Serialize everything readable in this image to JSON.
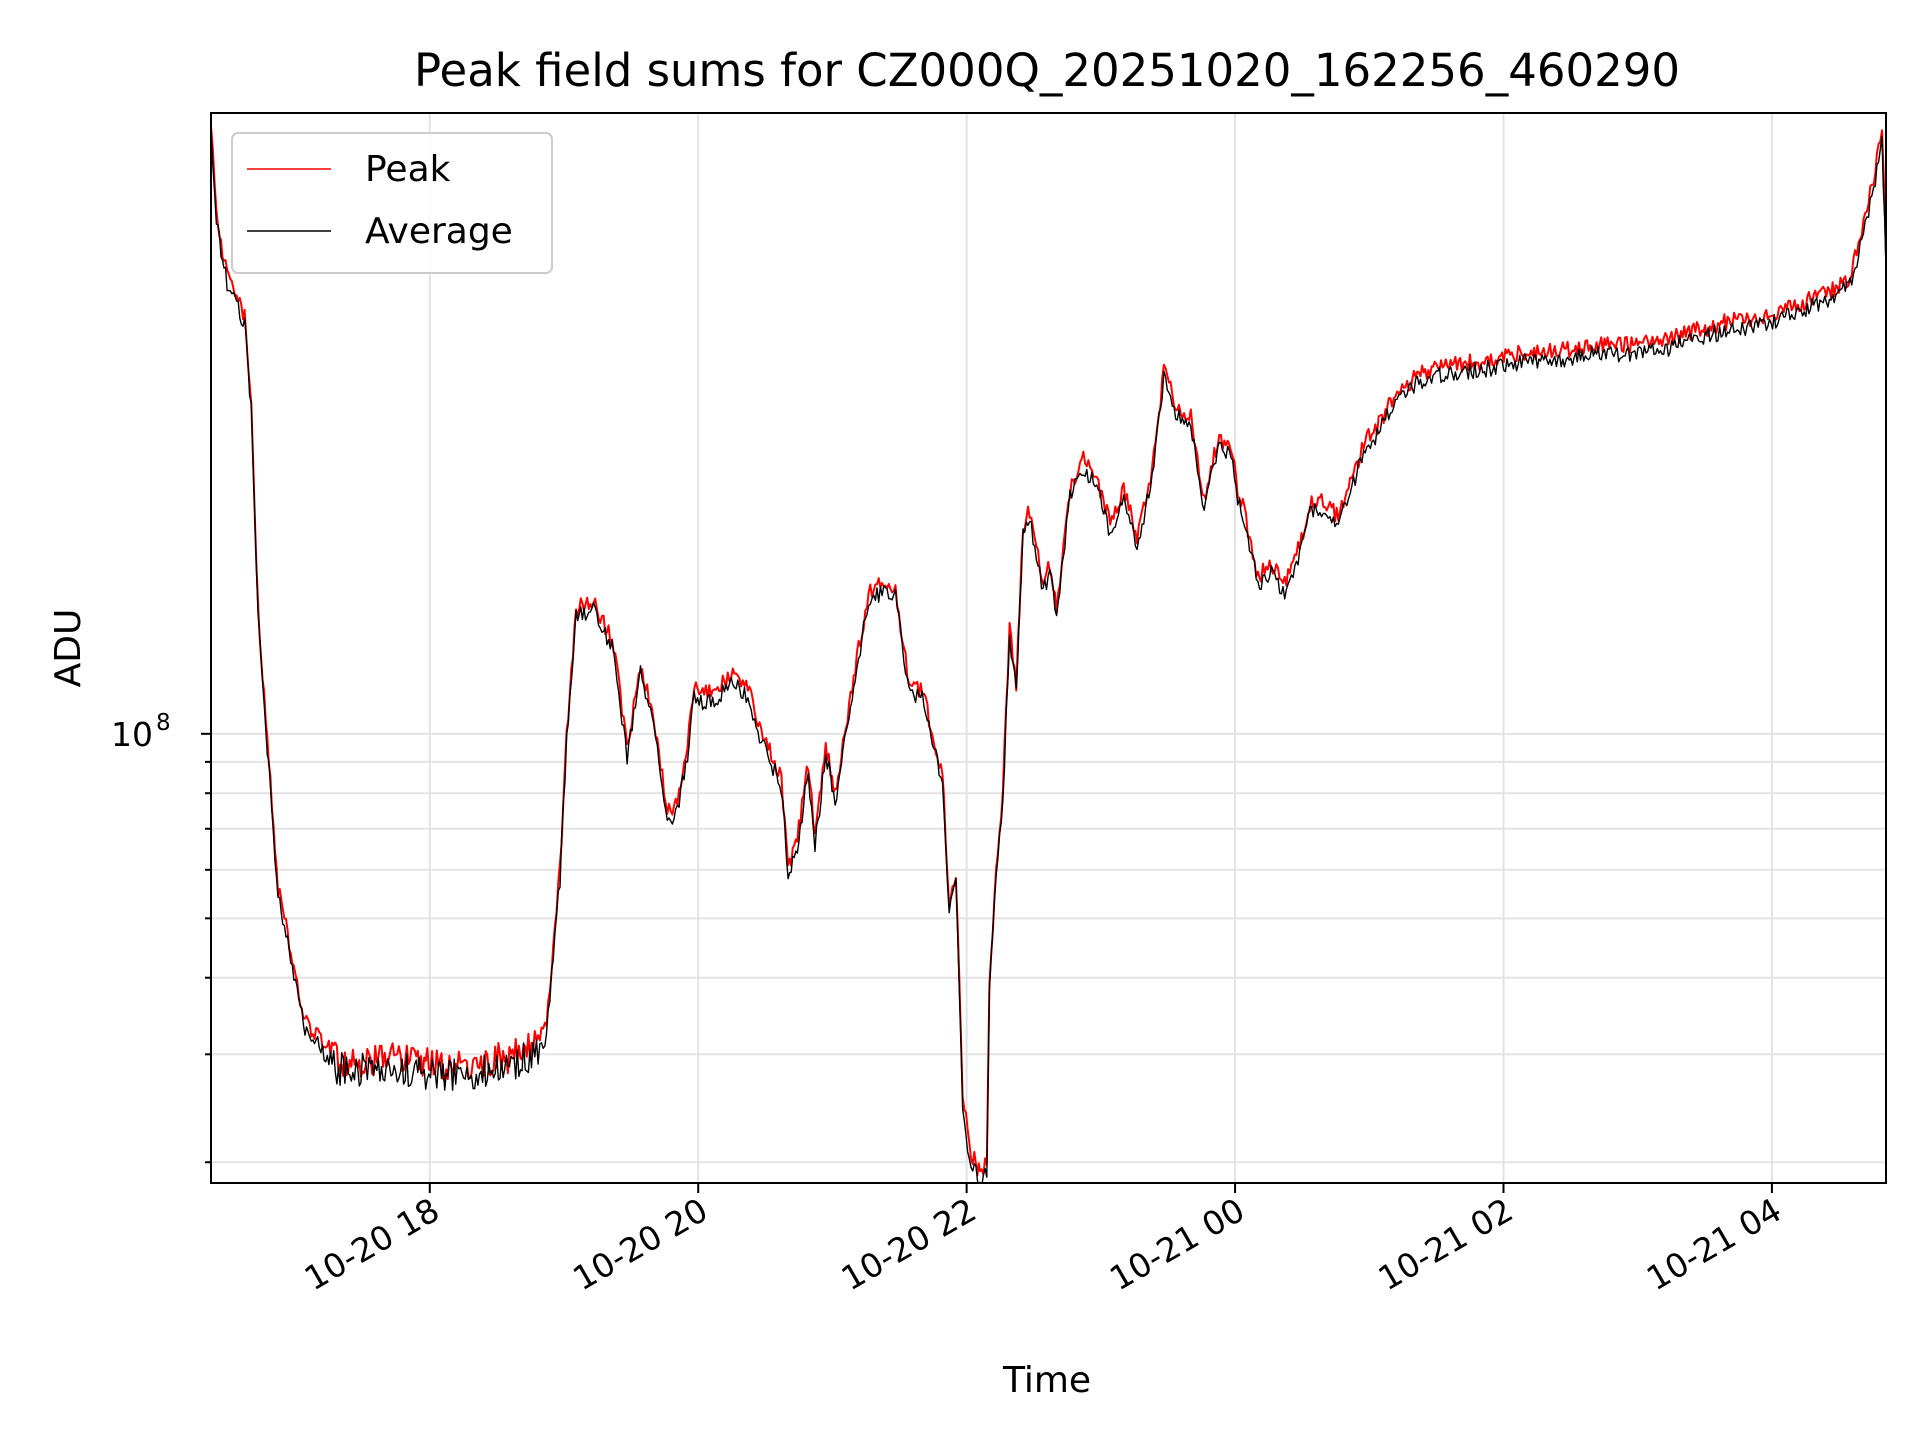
{
  "chart_data": {
    "type": "line",
    "title": "Peak field sums for CZ000Q_20251020_162256_460290",
    "xlabel": "Time",
    "ylabel": "ADU",
    "yscale": "log",
    "grid": true,
    "legend_position": "top-left",
    "x_units": "hours since 2025-10-20 16:22",
    "xlim": [
      0.0,
      12.48
    ],
    "ylim": [
      18500000,
      1030000000
    ],
    "x_ticks": [
      {
        "x": 1.63,
        "label": "10-20 18"
      },
      {
        "x": 3.63,
        "label": "10-20 20"
      },
      {
        "x": 5.63,
        "label": "10-20 22"
      },
      {
        "x": 7.63,
        "label": "10-21 00"
      },
      {
        "x": 9.63,
        "label": "10-21 02"
      },
      {
        "x": 11.63,
        "label": "10-21 04"
      }
    ],
    "y_major_ticks": [
      {
        "value": 100000000,
        "base": "10",
        "exponent": "8"
      }
    ],
    "y_minor_ticks": [
      20000000,
      30000000,
      40000000,
      50000000,
      60000000,
      70000000,
      80000000,
      90000000
    ],
    "colors": {
      "peak": "#ff0000",
      "average": "#000000",
      "grid": "#e3e3e3"
    },
    "series": [
      {
        "name": "Peak",
        "color": "#ff0000",
        "x": [
          0.0,
          0.04,
          0.12,
          0.25,
          0.3,
          0.35,
          0.5,
          0.7,
          0.95,
          1.2,
          1.4,
          1.6,
          1.8,
          2.0,
          2.2,
          2.4,
          2.5,
          2.6,
          2.65,
          2.72,
          2.85,
          3.0,
          3.1,
          3.2,
          3.3,
          3.4,
          3.45,
          3.55,
          3.6,
          3.65,
          3.75,
          3.9,
          4.0,
          4.1,
          4.15,
          4.25,
          4.3,
          4.38,
          4.45,
          4.5,
          4.58,
          4.65,
          4.72,
          4.8,
          4.9,
          5.0,
          5.1,
          5.2,
          5.3,
          5.4,
          5.45,
          5.5,
          5.55,
          5.6,
          5.65,
          5.7,
          5.73,
          5.78,
          5.8,
          5.85,
          5.9,
          5.95,
          6.0,
          6.05,
          6.1,
          6.2,
          6.25,
          6.3,
          6.4,
          6.5,
          6.6,
          6.7,
          6.8,
          6.9,
          7.0,
          7.1,
          7.2,
          7.3,
          7.4,
          7.5,
          7.6,
          7.65,
          7.7,
          7.8,
          7.9,
          8.0,
          8.1,
          8.2,
          8.3,
          8.4,
          8.5,
          8.6,
          8.7,
          8.8,
          8.9,
          9.0,
          9.2,
          9.5,
          9.8,
          10.0,
          10.3,
          10.5,
          10.8,
          11.0,
          11.3,
          11.6,
          11.8,
          12.0,
          12.2,
          12.3,
          12.4,
          12.45,
          12.48
        ],
        "values": [
          1000000000,
          700000000,
          560000000,
          480000000,
          350000000,
          160000000,
          56000000,
          34000000,
          29500000,
          29300000,
          29500000,
          28900000,
          28600000,
          29000000,
          29600000,
          31000000,
          33000000,
          60000000,
          100000000,
          160000000,
          165000000,
          140000000,
          95000000,
          130000000,
          105000000,
          75000000,
          74000000,
          95000000,
          120000000,
          117000000,
          118000000,
          125000000,
          119000000,
          100000000,
          95000000,
          85000000,
          60000000,
          70000000,
          90000000,
          68000000,
          96000000,
          80000000,
          100000000,
          128000000,
          170000000,
          175000000,
          172000000,
          120000000,
          118000000,
          95000000,
          86000000,
          53000000,
          60000000,
          26000000,
          21000000,
          20000000,
          19000000,
          20000000,
          40000000,
          60000000,
          80000000,
          150000000,
          120000000,
          220000000,
          230000000,
          175000000,
          190000000,
          160000000,
          250000000,
          280000000,
          260000000,
          220000000,
          250000000,
          210000000,
          260000000,
          390000000,
          340000000,
          330000000,
          240000000,
          300000000,
          295000000,
          250000000,
          230000000,
          180000000,
          190000000,
          175000000,
          200000000,
          240000000,
          240000000,
          225000000,
          260000000,
          300000000,
          320000000,
          350000000,
          370000000,
          385000000,
          400000000,
          405000000,
          420000000,
          420000000,
          430000000,
          430000000,
          435000000,
          450000000,
          470000000,
          480000000,
          500000000,
          520000000,
          550000000,
          650000000,
          830000000,
          970000000,
          600000000
        ]
      },
      {
        "name": "Average",
        "color": "#000000",
        "x": [
          0.0,
          0.04,
          0.12,
          0.25,
          0.3,
          0.35,
          0.5,
          0.7,
          0.95,
          1.2,
          1.4,
          1.6,
          1.8,
          2.0,
          2.2,
          2.4,
          2.5,
          2.6,
          2.65,
          2.72,
          2.85,
          3.0,
          3.1,
          3.2,
          3.3,
          3.4,
          3.45,
          3.55,
          3.6,
          3.65,
          3.75,
          3.9,
          4.0,
          4.1,
          4.15,
          4.25,
          4.3,
          4.38,
          4.45,
          4.5,
          4.58,
          4.65,
          4.72,
          4.8,
          4.9,
          5.0,
          5.1,
          5.2,
          5.3,
          5.4,
          5.45,
          5.5,
          5.55,
          5.6,
          5.65,
          5.7,
          5.73,
          5.78,
          5.8,
          5.85,
          5.9,
          5.95,
          6.0,
          6.05,
          6.1,
          6.2,
          6.25,
          6.3,
          6.4,
          6.5,
          6.6,
          6.7,
          6.8,
          6.9,
          7.0,
          7.1,
          7.2,
          7.3,
          7.4,
          7.5,
          7.6,
          7.65,
          7.7,
          7.8,
          7.9,
          8.0,
          8.1,
          8.2,
          8.3,
          8.4,
          8.5,
          8.6,
          8.7,
          8.8,
          8.9,
          9.0,
          9.2,
          9.5,
          9.8,
          10.0,
          10.3,
          10.5,
          10.8,
          11.0,
          11.3,
          11.6,
          11.8,
          12.0,
          12.2,
          12.3,
          12.4,
          12.45,
          12.48
        ],
        "values": [
          990000000,
          680000000,
          545000000,
          465000000,
          340000000,
          155000000,
          54000000,
          33000000,
          28400000,
          28200000,
          28400000,
          27900000,
          27600000,
          28000000,
          28600000,
          30000000,
          32000000,
          58000000,
          97000000,
          155000000,
          160000000,
          136000000,
          92000000,
          126000000,
          102000000,
          72000000,
          71000000,
          92000000,
          116000000,
          113000000,
          114000000,
          121000000,
          115000000,
          97000000,
          92000000,
          82000000,
          58000000,
          67000000,
          87000000,
          65000000,
          93000000,
          77000000,
          97000000,
          124000000,
          165000000,
          170000000,
          167000000,
          116000000,
          114000000,
          92000000,
          83000000,
          51000000,
          58000000,
          25000000,
          20000000,
          19200000,
          18600000,
          19300000,
          38500000,
          58000000,
          77000000,
          145000000,
          116000000,
          213000000,
          223000000,
          170000000,
          184000000,
          155000000,
          243000000,
          272000000,
          252000000,
          213000000,
          243000000,
          204000000,
          252000000,
          378000000,
          330000000,
          320000000,
          233000000,
          291000000,
          286000000,
          243000000,
          223000000,
          175000000,
          184000000,
          170000000,
          194000000,
          233000000,
          233000000,
          218000000,
          252000000,
          291000000,
          310000000,
          340000000,
          359000000,
          373000000,
          388000000,
          393000000,
          407000000,
          407000000,
          417000000,
          417000000,
          422000000,
          437000000,
          456000000,
          466000000,
          485000000,
          505000000,
          534000000,
          631000000,
          805000000,
          941000000,
          570000000
        ]
      }
    ]
  }
}
